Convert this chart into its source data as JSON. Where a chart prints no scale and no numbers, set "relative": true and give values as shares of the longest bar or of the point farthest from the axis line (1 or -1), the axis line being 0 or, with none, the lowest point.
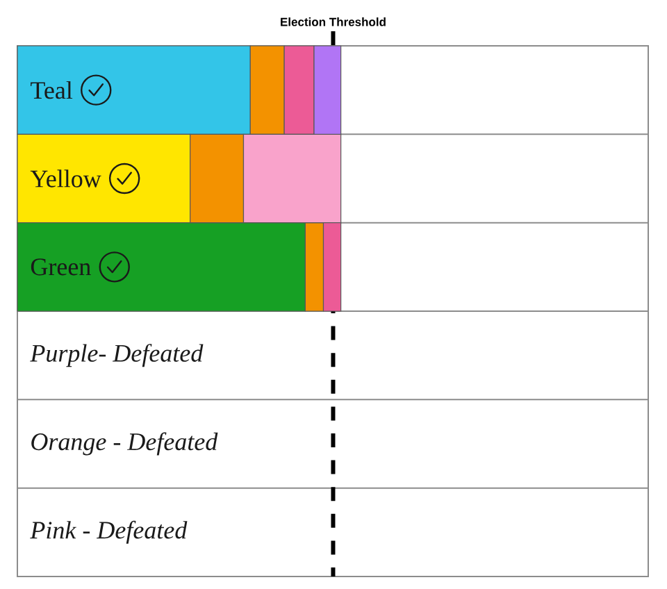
{
  "chart_data": {
    "type": "bar",
    "orientation": "horizontal",
    "stacked": true,
    "relative": true,
    "categories": [
      "Teal",
      "Yellow",
      "Green",
      "Purple- Defeated",
      "Orange - Defeated",
      "Pink - Defeated"
    ],
    "series": [
      {
        "colors": [
          "#33c5e8",
          "#ffe600",
          "#16a024",
          null,
          null,
          null
        ],
        "values": [
          0.72,
          0.534,
          0.89,
          null,
          null,
          null
        ]
      },
      {
        "color": "#f39200",
        "values": [
          0.105,
          0.165,
          0.056,
          null,
          null,
          null
        ]
      },
      {
        "colors": [
          "#ec5b96",
          "#f9a3cb",
          "#ec5b96",
          null,
          null,
          null
        ],
        "values": [
          0.092,
          0.301,
          0.054,
          null,
          null,
          null
        ]
      },
      {
        "color": "#b175f5",
        "values": [
          0.083,
          null,
          null,
          null,
          null,
          null
        ]
      }
    ],
    "ref_lines": [
      {
        "axis": "x",
        "value": 0.976,
        "label": "Election Threshold",
        "color": "#000000",
        "line_style": "dashed"
      }
    ]
  }
}
